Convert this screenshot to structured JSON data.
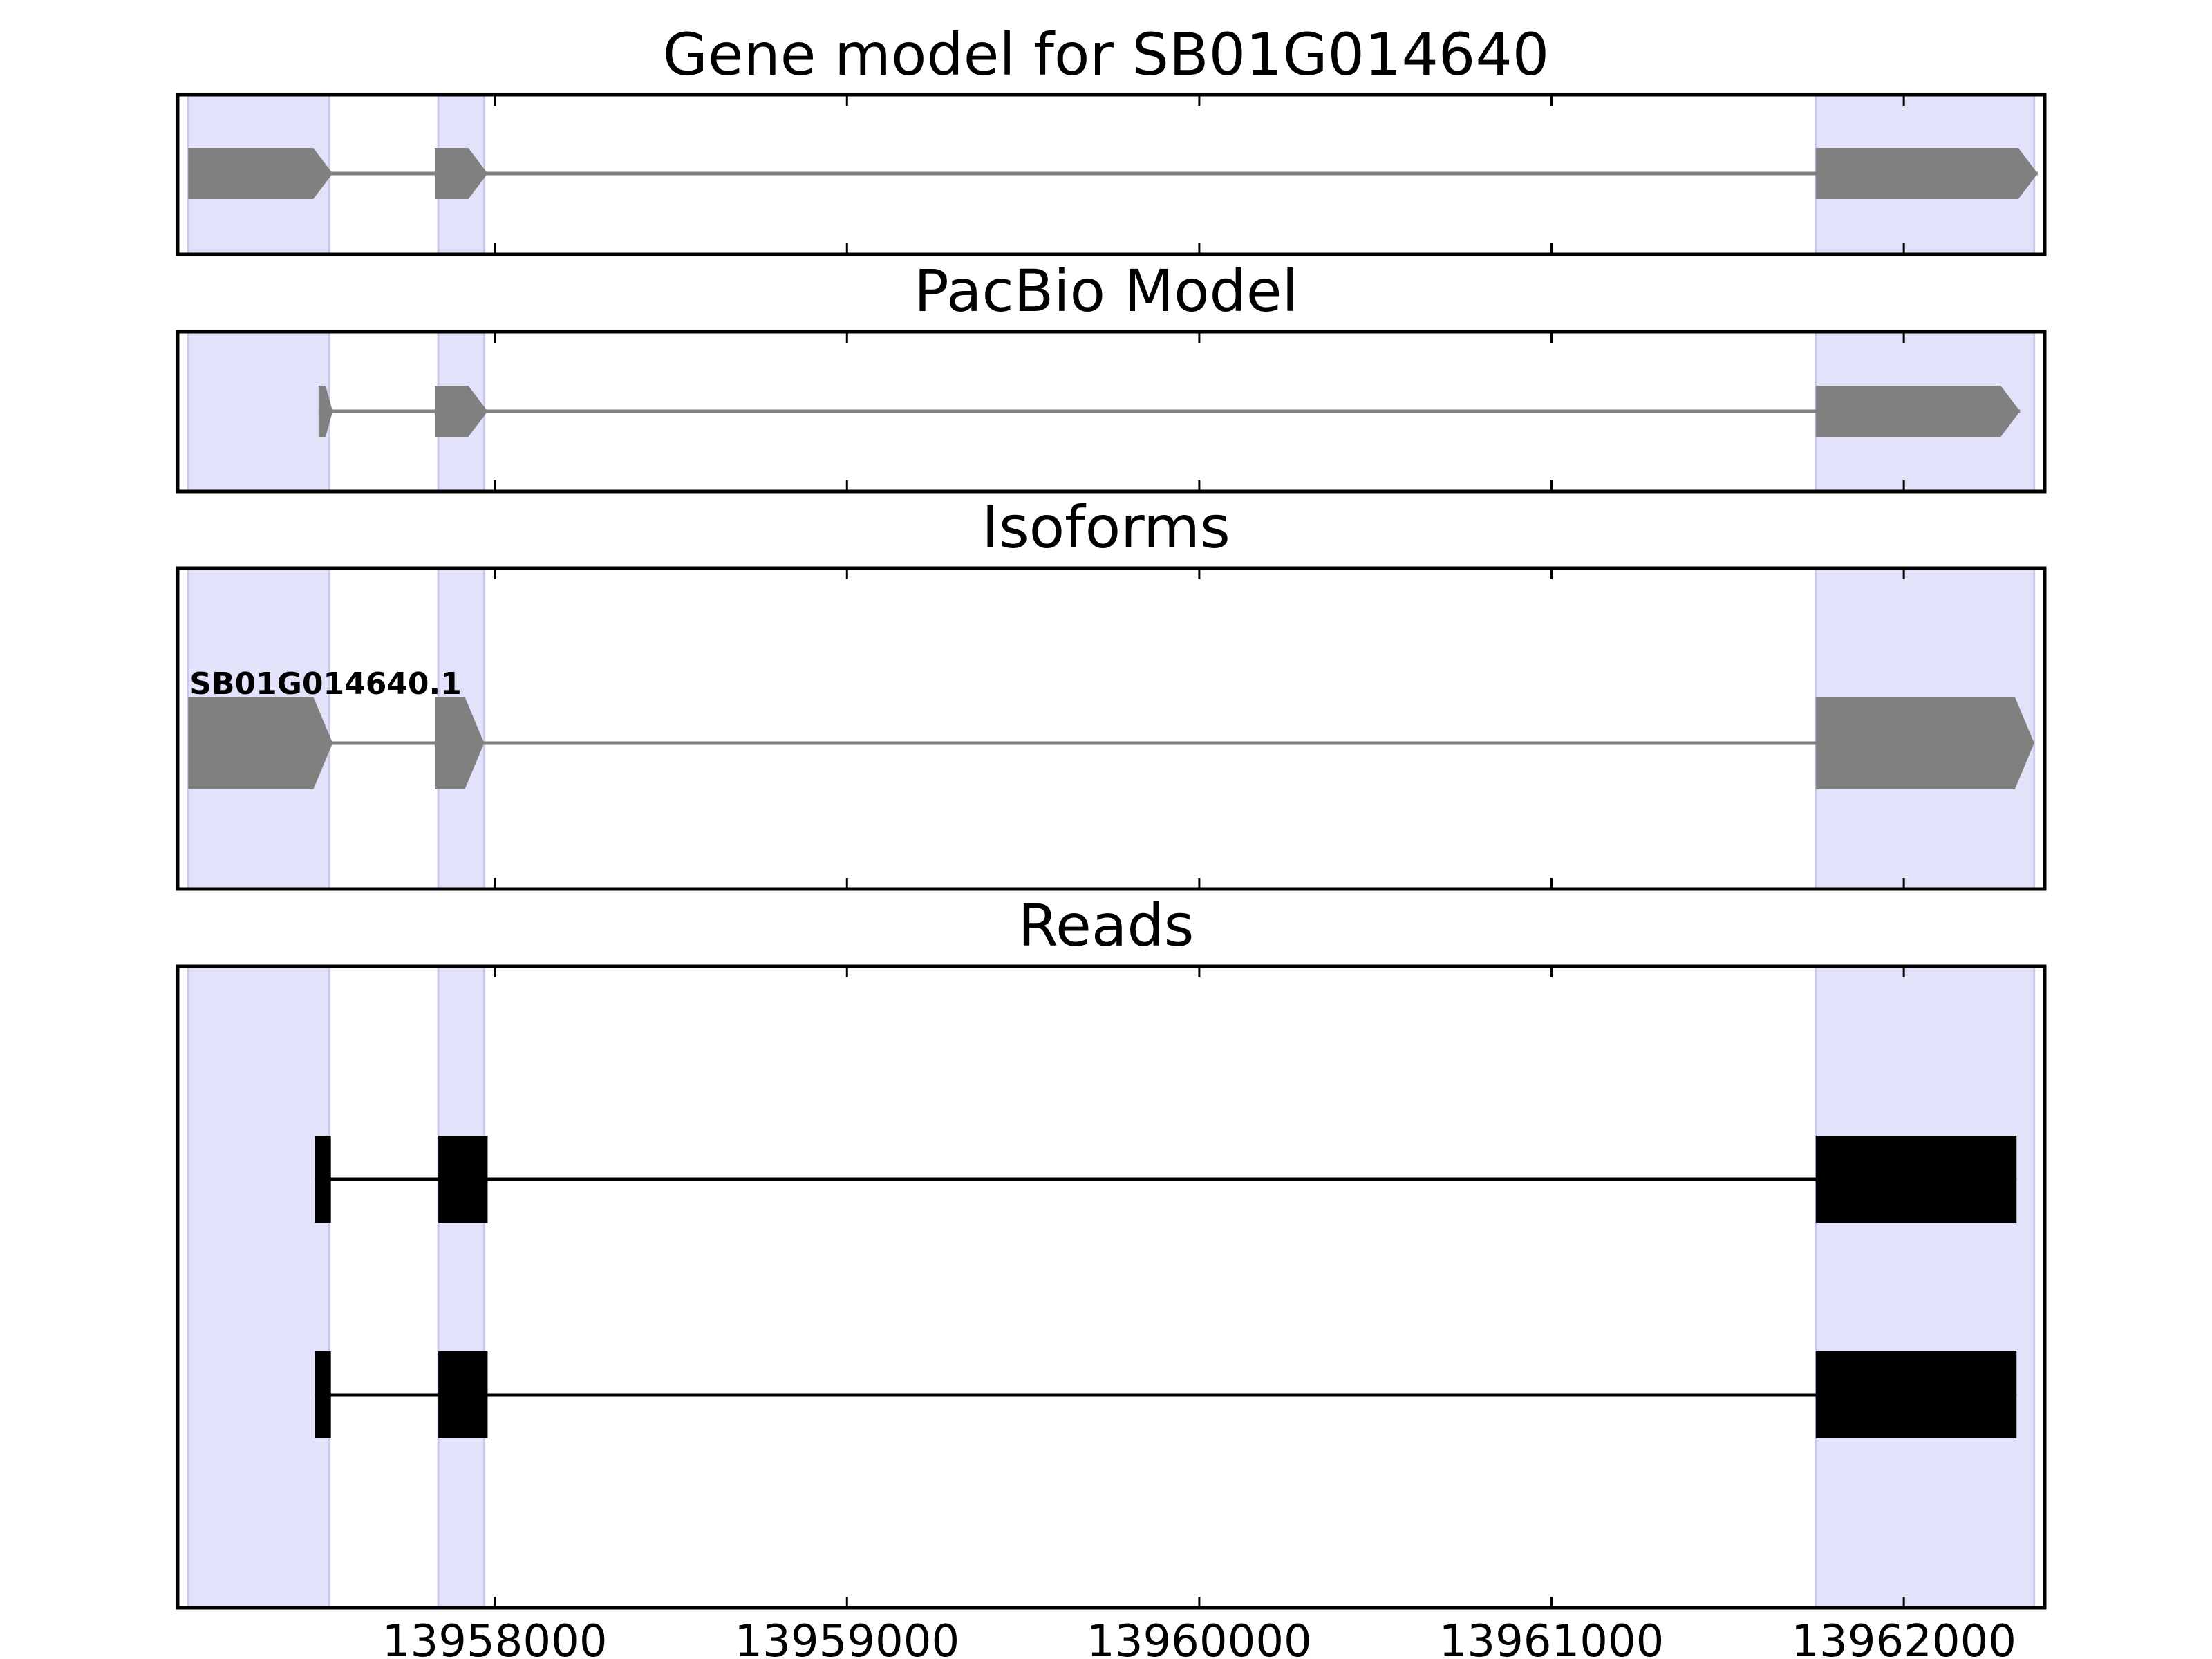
{
  "chart_data": {
    "type": "gene-track",
    "title": "Gene model for SB01G014640",
    "xlim": [
      13957100,
      13962400
    ],
    "x_ticks": [
      13958000,
      13959000,
      13960000,
      13961000,
      13962000
    ],
    "x_tick_labels": [
      "13958000",
      "13959000",
      "13960000",
      "13961000",
      "13962000"
    ],
    "highlight_color": "#e2e2fb",
    "highlight_edge_color": "#c9c9ee",
    "highlight_regions": [
      [
        13957130,
        13957530
      ],
      [
        13957840,
        13957970
      ],
      [
        13961750,
        13962370
      ]
    ],
    "panels": [
      {
        "title": "Gene model for SB01G014640",
        "style": "arrow",
        "color": "#808080",
        "tracks": [
          {
            "label": "",
            "strand": "+",
            "exons": [
              [
                13957130,
                13957540
              ],
              [
                13957830,
                13957980
              ],
              [
                13961750,
                13962380
              ]
            ]
          }
        ]
      },
      {
        "title": "PacBio Model",
        "style": "arrow",
        "color": "#808080",
        "tracks": [
          {
            "label": "",
            "strand": "+",
            "exons": [
              [
                13957500,
                13957540
              ],
              [
                13957830,
                13957980
              ],
              [
                13961750,
                13962330
              ]
            ]
          }
        ]
      },
      {
        "title": "Isoforms",
        "style": "arrow",
        "color": "#808080",
        "tracks": [
          {
            "label": "SB01G014640.1",
            "strand": "+",
            "exons": [
              [
                13957130,
                13957540
              ],
              [
                13957830,
                13957970
              ],
              [
                13961750,
                13962370
              ]
            ]
          }
        ]
      },
      {
        "title": "Reads",
        "style": "block",
        "color": "#000000",
        "tracks": [
          {
            "label": "",
            "strand": "+",
            "exons": [
              [
                13957490,
                13957535
              ],
              [
                13957840,
                13957980
              ],
              [
                13961750,
                13962320
              ]
            ]
          },
          {
            "label": "",
            "strand": "+",
            "exons": [
              [
                13957490,
                13957535
              ],
              [
                13957840,
                13957980
              ],
              [
                13961750,
                13962320
              ]
            ]
          }
        ]
      }
    ]
  }
}
